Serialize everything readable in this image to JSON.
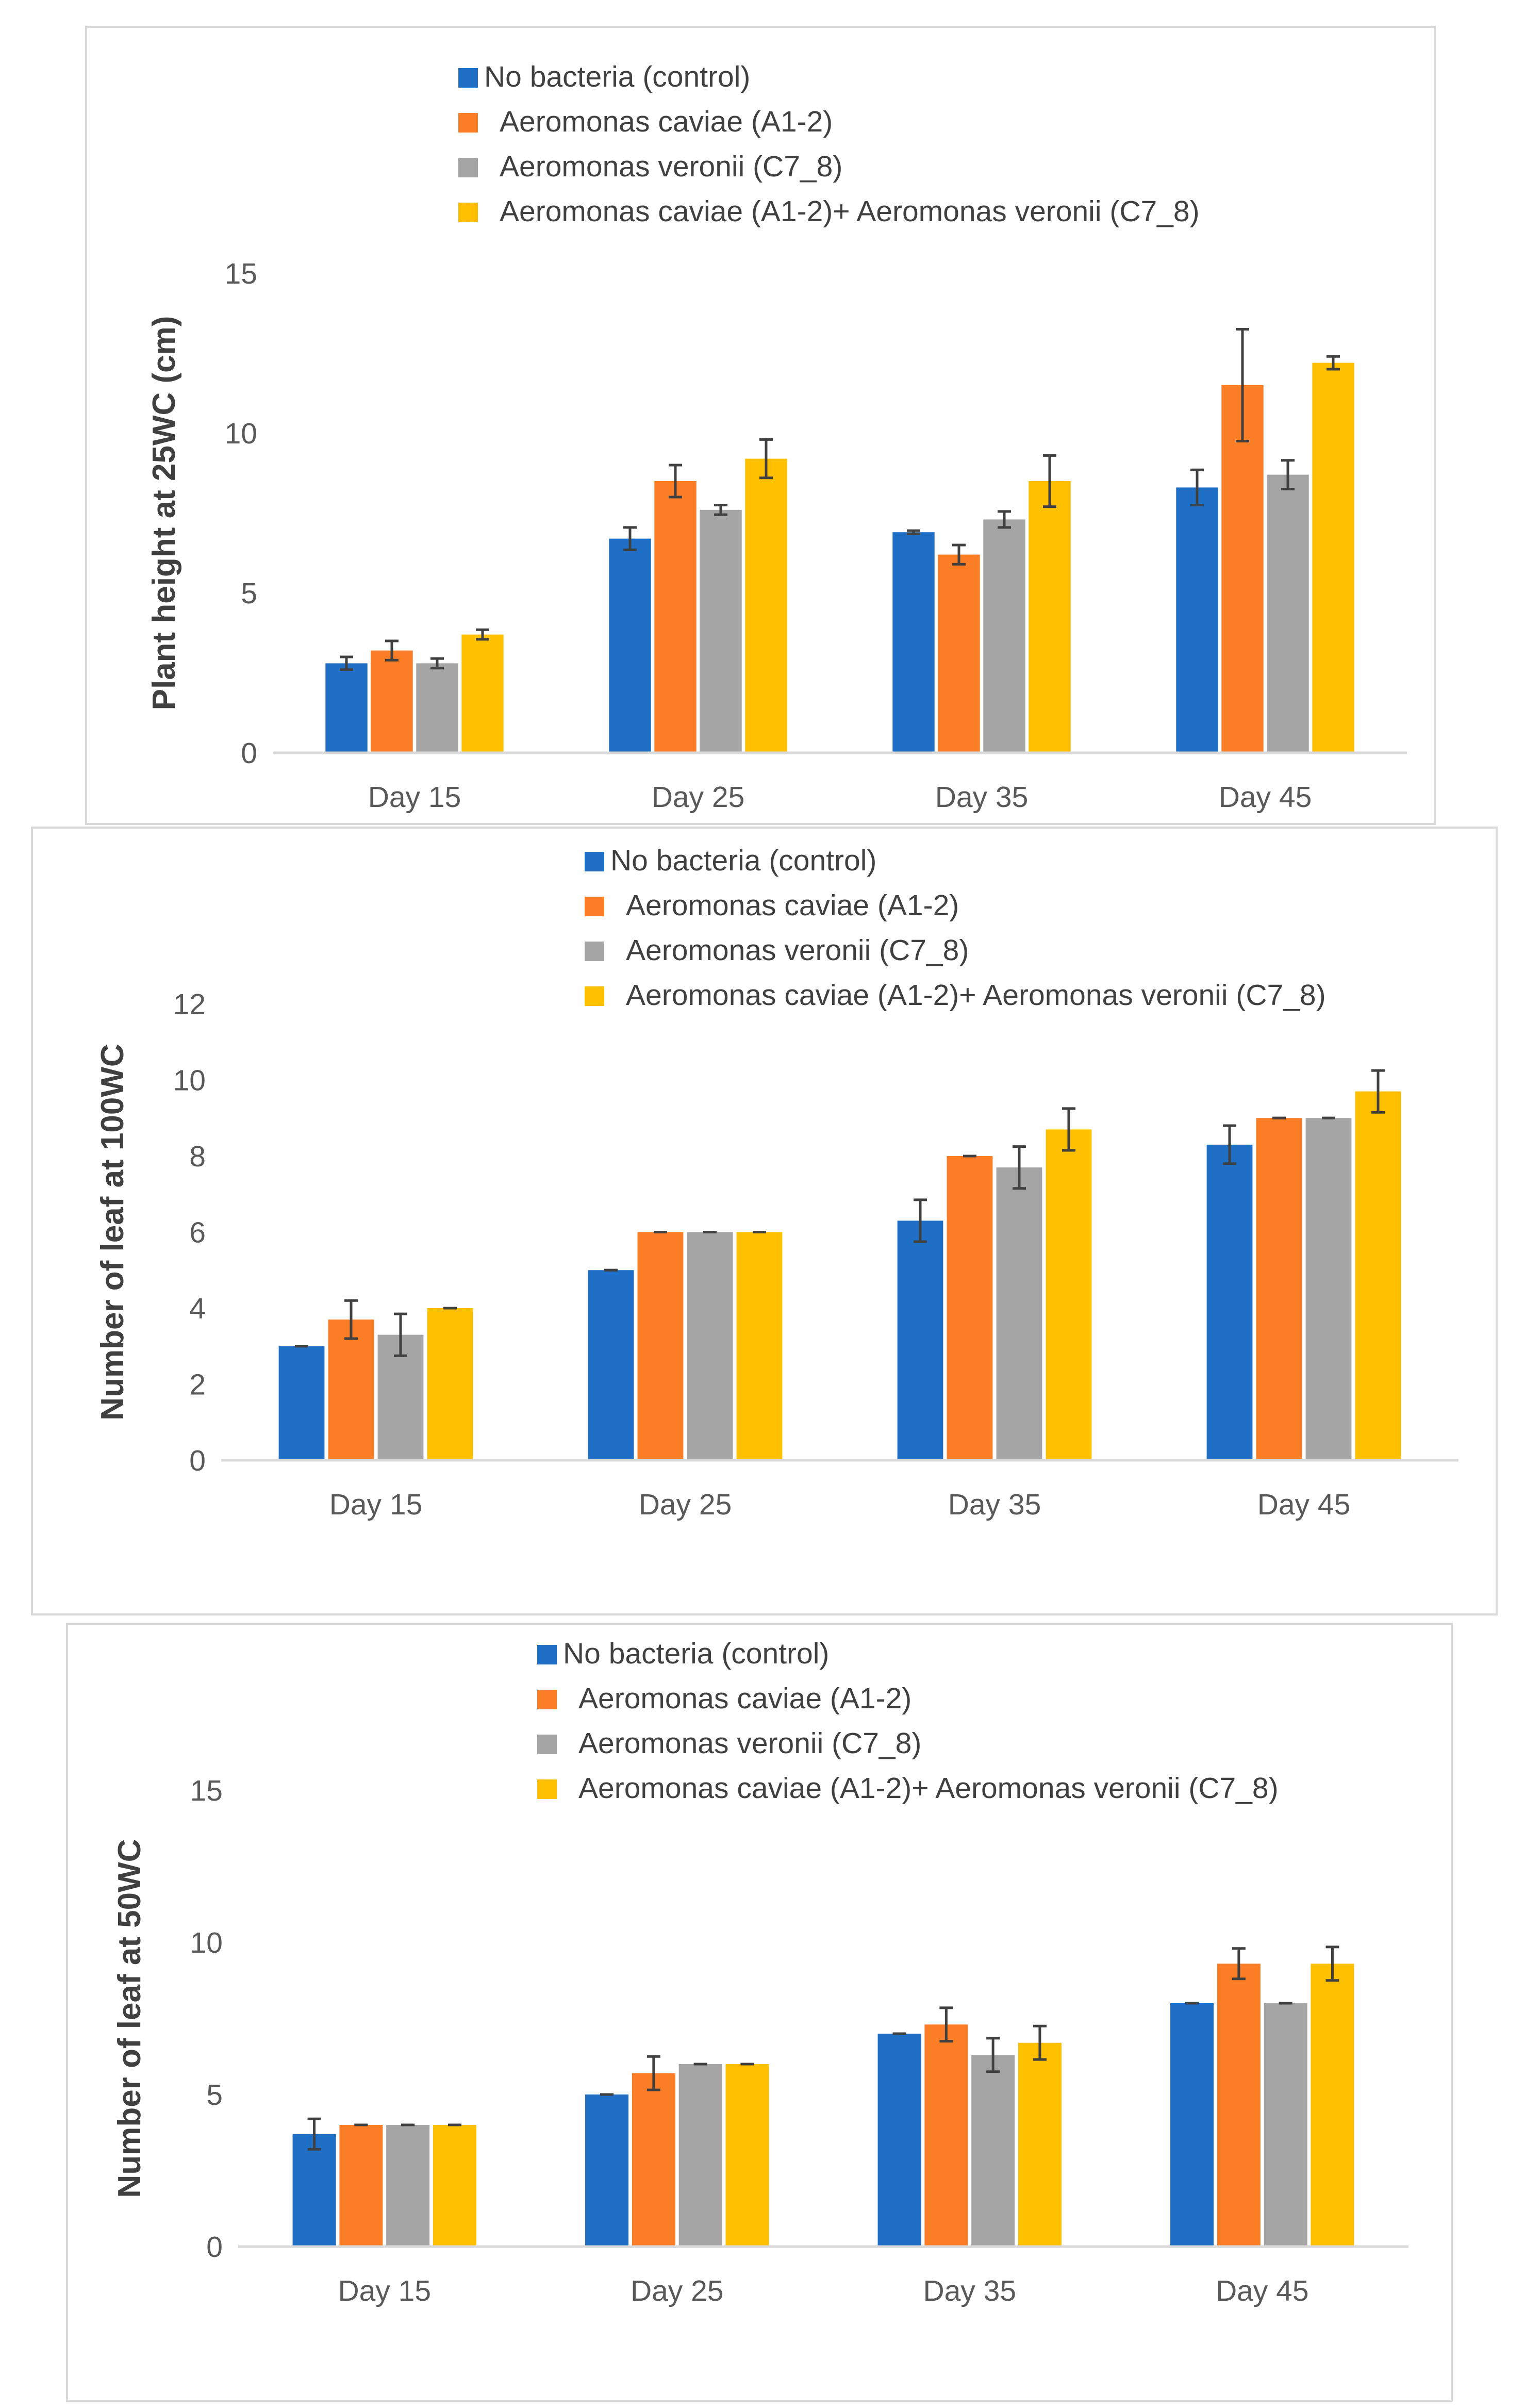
{
  "chart_data": [
    {
      "type": "bar",
      "title": "",
      "xlabel": "",
      "ylabel": "Plant height at 25WC (cm)",
      "categories": [
        "Day 15",
        "Day 25",
        "Day 35",
        "Day 45"
      ],
      "ylim": [
        0,
        15
      ],
      "yticks": [
        0,
        5,
        10,
        15
      ],
      "grid": false,
      "legend_position": "top",
      "series": [
        {
          "name": "No bacteria (control)",
          "color": "#1f6fc7",
          "values": [
            2.8,
            6.7,
            6.9,
            8.3
          ],
          "errors": [
            0.2,
            0.35,
            0.05,
            0.55
          ]
        },
        {
          "name": "Aeromonas caviae (A1-2)",
          "color": "#fb7d26",
          "values": [
            3.2,
            8.5,
            6.2,
            11.5
          ],
          "errors": [
            0.3,
            0.5,
            0.3,
            1.75
          ]
        },
        {
          "name": "Aeromonas veronii (C7_8)",
          "color": "#a5a5a5",
          "values": [
            2.8,
            7.6,
            7.3,
            8.7
          ],
          "errors": [
            0.15,
            0.15,
            0.25,
            0.45
          ]
        },
        {
          "name": "Aeromonas caviae (A1-2)+ Aeromonas veronii (C7_8)",
          "color": "#ffc000",
          "values": [
            3.7,
            9.2,
            8.5,
            12.2
          ],
          "errors": [
            0.15,
            0.6,
            0.8,
            0.2
          ]
        }
      ]
    },
    {
      "type": "bar",
      "title": "",
      "xlabel": "",
      "ylabel": "Number of leaf at 100WC",
      "categories": [
        "Day 15",
        "Day 25",
        "Day 35",
        "Day 45"
      ],
      "ylim": [
        0,
        12
      ],
      "yticks": [
        0,
        2,
        4,
        6,
        8,
        10,
        12
      ],
      "grid": false,
      "legend_position": "top",
      "series": [
        {
          "name": "No bacteria (control)",
          "color": "#1f6fc7",
          "values": [
            3.0,
            5.0,
            6.3,
            8.3
          ],
          "errors": [
            0,
            0,
            0.55,
            0.5
          ]
        },
        {
          "name": "Aeromonas caviae (A1-2)",
          "color": "#fb7d26",
          "values": [
            3.7,
            6.0,
            8.0,
            9.0
          ],
          "errors": [
            0.5,
            0,
            0,
            0
          ]
        },
        {
          "name": "Aeromonas veronii (C7_8)",
          "color": "#a5a5a5",
          "values": [
            3.3,
            6.0,
            7.7,
            9.0
          ],
          "errors": [
            0.55,
            0,
            0.55,
            0
          ]
        },
        {
          "name": "Aeromonas caviae (A1-2)+ Aeromonas veronii (C7_8)",
          "color": "#ffc000",
          "values": [
            4.0,
            6.0,
            8.7,
            9.7
          ],
          "errors": [
            0,
            0,
            0.55,
            0.55
          ]
        }
      ]
    },
    {
      "type": "bar",
      "title": "",
      "xlabel": "",
      "ylabel": "Number of leaf at 50WC",
      "categories": [
        "Day 15",
        "Day 25",
        "Day 35",
        "Day 45"
      ],
      "ylim": [
        0,
        15
      ],
      "yticks": [
        0,
        5,
        10,
        15
      ],
      "grid": false,
      "legend_position": "top",
      "series": [
        {
          "name": "No bacteria (control)",
          "color": "#1f6fc7",
          "values": [
            3.7,
            5.0,
            7.0,
            8.0
          ],
          "errors": [
            0.5,
            0,
            0,
            0
          ]
        },
        {
          "name": "Aeromonas caviae (A1-2)",
          "color": "#fb7d26",
          "values": [
            4.0,
            5.7,
            7.3,
            9.3
          ],
          "errors": [
            0,
            0.55,
            0.55,
            0.5
          ]
        },
        {
          "name": "Aeromonas veronii (C7_8)",
          "color": "#a5a5a5",
          "values": [
            4.0,
            6.0,
            6.3,
            8.0
          ],
          "errors": [
            0,
            0,
            0.55,
            0
          ]
        },
        {
          "name": "Aeromonas caviae (A1-2)+ Aeromonas veronii (C7_8)",
          "color": "#ffc000",
          "values": [
            4.0,
            6.0,
            6.7,
            9.3
          ],
          "errors": [
            0,
            0,
            0.55,
            0.55
          ]
        }
      ]
    }
  ]
}
